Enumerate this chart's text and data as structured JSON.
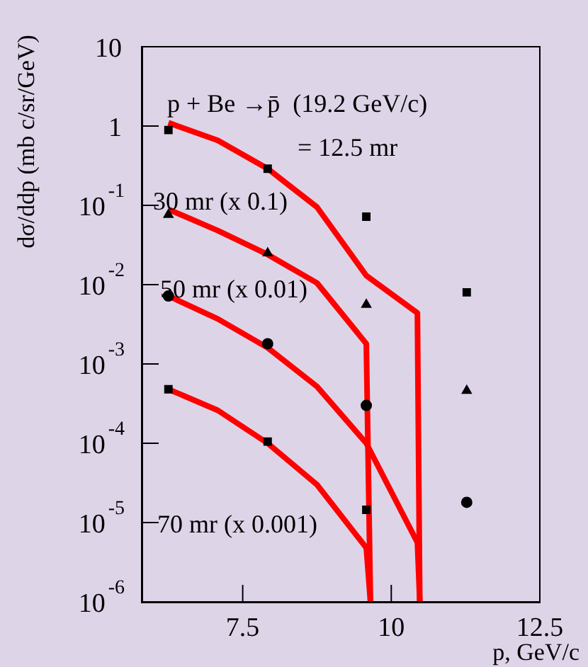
{
  "chart_data": {
    "type": "line",
    "ylabel": "dσ/ddp (mb c/sr/GeV)",
    "xlabel": "p, GeV/c",
    "log": "y",
    "grid": false,
    "legend": false,
    "xlim": [
      5.8,
      12.5
    ],
    "xticks": [
      7.5,
      10,
      12.5
    ],
    "ylim": [
      1e-06,
      10
    ],
    "yticks": [
      {
        "value": 1e-06,
        "label": "10$^{-6}$"
      },
      {
        "value": 1e-05,
        "label": "10$^{-5}$"
      },
      {
        "value": 0.0001,
        "label": "10$^{-4}$"
      },
      {
        "value": 0.001,
        "label": "10$^{-3}$"
      },
      {
        "value": 0.01,
        "label": "10$^{-2}$"
      },
      {
        "value": 0.1,
        "label": "10$^{-1}$"
      },
      {
        "value": 1,
        "label": "1"
      },
      {
        "value": 10,
        "label": "10"
      }
    ],
    "annotations": [
      "p + Be →p̄  (19.2 GeV/c)",
      "= 12.5 mr",
      "30 mr (x 0.1)",
      "50 mr (x 0.01)",
      "70 mr (x 0.001)"
    ],
    "series": [
      {
        "marker": "none",
        "color": "#ff0000",
        "x": [
          6.25,
          7.08,
          7.92,
          8.75,
          9.58,
          10.44,
          10.48
        ],
        "values": [
          1.1,
          0.66,
          0.29,
          0.095,
          0.013,
          0.0044,
          1e-06
        ]
      },
      {
        "marker": "none",
        "color": "#ff0000",
        "x": [
          6.25,
          7.08,
          7.92,
          8.75,
          9.58,
          9.65
        ],
        "values": [
          0.089,
          0.048,
          0.024,
          0.0105,
          0.0018,
          1e-06
        ]
      },
      {
        "marker": "none",
        "color": "#ff0000",
        "x": [
          6.25,
          7.08,
          7.92,
          8.75,
          9.58,
          10.44,
          10.48
        ],
        "values": [
          0.0072,
          0.0037,
          0.0016,
          0.00052,
          0.0001,
          5.6e-06,
          1e-06
        ]
      },
      {
        "marker": "none",
        "color": "#ff0000",
        "x": [
          6.25,
          7.08,
          7.92,
          8.75,
          9.58,
          9.65
        ],
        "values": [
          0.00048,
          0.00026,
          0.0001,
          3e-05,
          4.8e-06,
          1e-06
        ]
      },
      {
        "type": "scatter",
        "marker": "square",
        "color": "#000000",
        "x": [
          6.25,
          7.92,
          9.58,
          11.27
        ],
        "values": [
          0.89,
          0.29,
          0.072,
          0.008
        ]
      },
      {
        "type": "scatter",
        "marker": "triangle",
        "color": "#000000",
        "x": [
          6.25,
          7.92,
          9.58,
          11.27
        ],
        "values": [
          0.076,
          0.025,
          0.0056,
          0.00046
        ]
      },
      {
        "type": "scatter",
        "marker": "circle",
        "color": "#000000",
        "x": [
          6.25,
          7.92,
          9.58,
          11.27
        ],
        "values": [
          0.0072,
          0.0018,
          0.0003,
          1.8e-05
        ]
      },
      {
        "type": "scatter",
        "marker": "square",
        "color": "#000000",
        "x": [
          6.25,
          7.92,
          9.58
        ],
        "values": [
          0.00048,
          0.000105,
          1.45e-05
        ]
      }
    ]
  }
}
